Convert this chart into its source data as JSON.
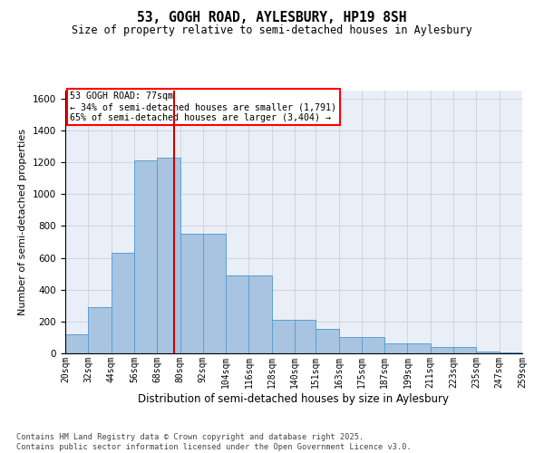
{
  "title1": "53, GOGH ROAD, AYLESBURY, HP19 8SH",
  "title2": "Size of property relative to semi-detached houses in Aylesbury",
  "xlabel": "Distribution of semi-detached houses by size in Aylesbury",
  "ylabel": "Number of semi-detached properties",
  "annotation_title": "53 GOGH ROAD: 77sqm",
  "annotation_line1": "← 34% of semi-detached houses are smaller (1,791)",
  "annotation_line2": "65% of semi-detached houses are larger (3,404) →",
  "footer1": "Contains HM Land Registry data © Crown copyright and database right 2025.",
  "footer2": "Contains public sector information licensed under the Open Government Licence v3.0.",
  "property_size": 77,
  "bin_edges": [
    20,
    32,
    44,
    56,
    68,
    80,
    92,
    104,
    116,
    128,
    140,
    151,
    163,
    175,
    187,
    199,
    211,
    223,
    235,
    247,
    259
  ],
  "bar_heights": [
    120,
    290,
    630,
    1210,
    1230,
    750,
    750,
    490,
    490,
    210,
    210,
    155,
    100,
    100,
    60,
    60,
    40,
    40,
    10,
    5
  ],
  "bar_color": "#a8c4e0",
  "bar_edge_color": "#5a9fd4",
  "vline_color": "#cc0000",
  "grid_color": "#c8d0dc",
  "bg_color": "#eaeff7",
  "ylim": [
    0,
    1650
  ],
  "yticks": [
    0,
    200,
    400,
    600,
    800,
    1000,
    1200,
    1400,
    1600
  ]
}
